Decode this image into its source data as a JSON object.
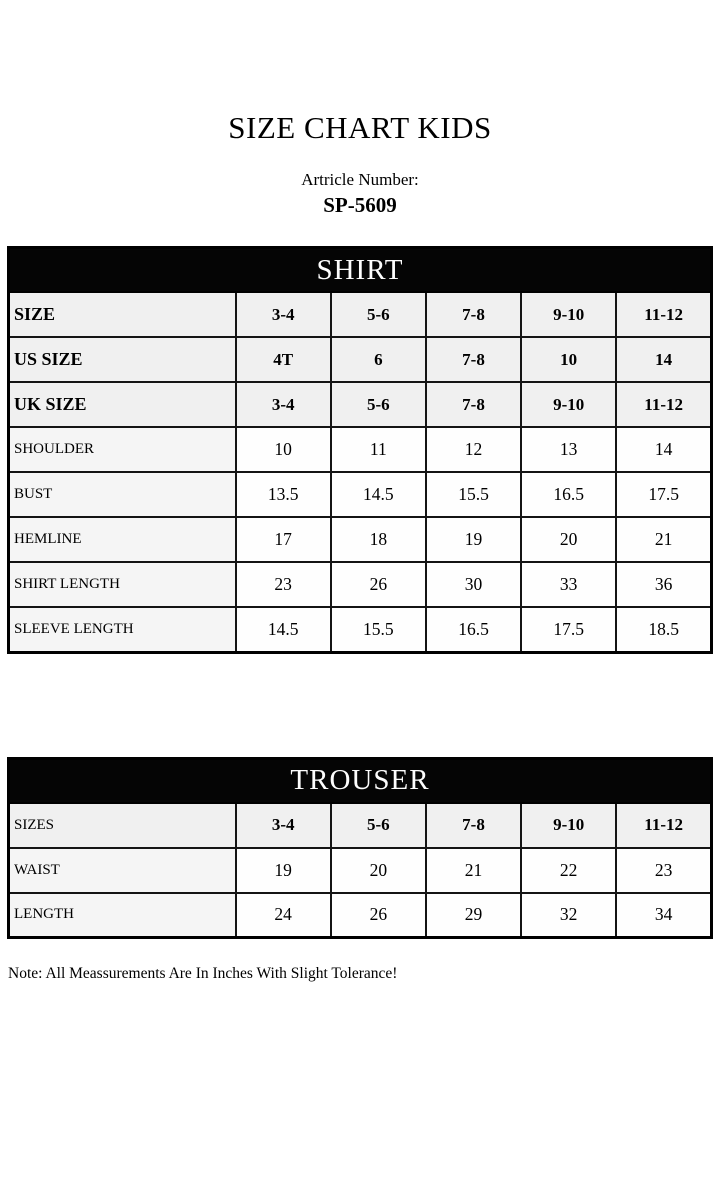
{
  "page": {
    "title": "SIZE CHART KIDS",
    "article_label": "Artricle Number:",
    "article_number": "SP-5609",
    "note": "Note: All Meassurements Are In Inches With Slight Tolerance!"
  },
  "colors": {
    "band_background": "#050505",
    "band_text": "#fdfdfd",
    "size_row_background": "#f0f0f0",
    "label_cell_background": "#f5f5f5",
    "value_cell_background": "#fefefe",
    "border": "#141414"
  },
  "shirt_table": {
    "header": "SHIRT",
    "size_rows": [
      {
        "label": "SIZE",
        "values": [
          "3-4",
          "5-6",
          "7-8",
          "9-10",
          "11-12"
        ]
      },
      {
        "label": "US SIZE",
        "values": [
          "4T",
          "6",
          "7-8",
          "10",
          "14"
        ]
      },
      {
        "label": "UK SIZE",
        "values": [
          "3-4",
          "5-6",
          "7-8",
          "9-10",
          "11-12"
        ]
      }
    ],
    "measure_rows": [
      {
        "label": "SHOULDER",
        "values": [
          "10",
          "11",
          "12",
          "13",
          "14"
        ]
      },
      {
        "label": "BUST",
        "values": [
          "13.5",
          "14.5",
          "15.5",
          "16.5",
          "17.5"
        ]
      },
      {
        "label": "HEMLINE",
        "values": [
          "17",
          "18",
          "19",
          "20",
          "21"
        ]
      },
      {
        "label": "SHIRT LENGTH",
        "values": [
          "23",
          "26",
          "30",
          "33",
          "36"
        ]
      },
      {
        "label": "SLEEVE LENGTH",
        "values": [
          "14.5",
          "15.5",
          "16.5",
          "17.5",
          "18.5"
        ]
      }
    ]
  },
  "trouser_table": {
    "header": "TROUSER",
    "size_rows": [
      {
        "label": "SIZES",
        "values": [
          "3-4",
          "5-6",
          "7-8",
          "9-10",
          "11-12"
        ]
      }
    ],
    "measure_rows": [
      {
        "label": "WAIST",
        "values": [
          "19",
          "20",
          "21",
          "22",
          "23"
        ]
      },
      {
        "label": "LENGTH",
        "values": [
          "24",
          "26",
          "29",
          "32",
          "34"
        ]
      }
    ]
  }
}
